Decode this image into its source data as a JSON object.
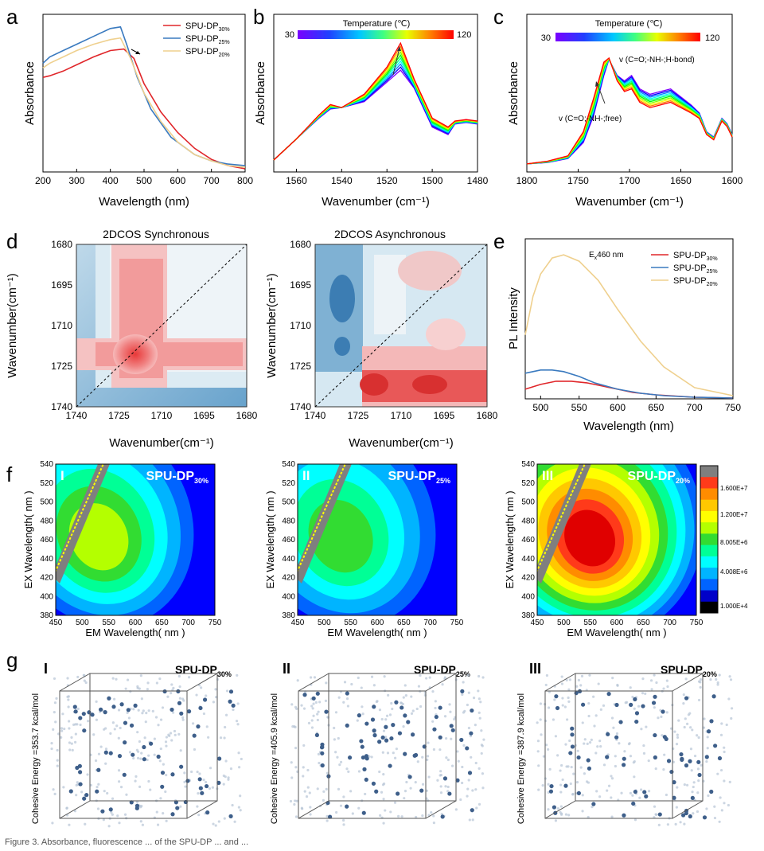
{
  "colors": {
    "red": "#e0262a",
    "blue": "#3a7abf",
    "yellow": "#efd08e"
  },
  "panel_labels": {
    "a": "a",
    "b": "b",
    "c": "c",
    "d": "d",
    "e": "e",
    "f": "f",
    "g": "g"
  },
  "temperature_bar": {
    "title": "Temperature (℃)",
    "min": "30",
    "max": "120"
  },
  "chart_data": [
    {
      "id": "a",
      "type": "line",
      "xlabel": "Wavelength (nm)",
      "ylabel": "Absorbance",
      "xlim": [
        200,
        800
      ],
      "x_ticks": [
        "200",
        "300",
        "400",
        "500",
        "600",
        "700",
        "800"
      ],
      "legend": [
        {
          "base": "SPU-DP",
          "sub": "30%"
        },
        {
          "base": "SPU-DP",
          "sub": "25%"
        },
        {
          "base": "SPU-DP",
          "sub": "20%"
        }
      ],
      "series": [
        {
          "name": "SPU-DP30%",
          "color": "red",
          "x": [
            200,
            220,
            260,
            300,
            350,
            400,
            440,
            470,
            500,
            550,
            600,
            650,
            700,
            750,
            800
          ],
          "y": [
            0.6,
            0.61,
            0.64,
            0.68,
            0.73,
            0.77,
            0.78,
            0.72,
            0.56,
            0.38,
            0.25,
            0.15,
            0.08,
            0.04,
            0.02
          ]
        },
        {
          "name": "SPU-DP25%",
          "color": "blue",
          "x": [
            200,
            220,
            260,
            300,
            350,
            400,
            430,
            450,
            480,
            520,
            580,
            650,
            700,
            750,
            800
          ],
          "y": [
            0.69,
            0.73,
            0.77,
            0.81,
            0.86,
            0.91,
            0.92,
            0.8,
            0.6,
            0.4,
            0.22,
            0.11,
            0.07,
            0.05,
            0.04
          ]
        },
        {
          "name": "SPU-DP20%",
          "color": "yellow",
          "x": [
            200,
            220,
            260,
            300,
            350,
            400,
            430,
            460,
            500,
            550,
            600,
            650,
            700,
            750,
            800
          ],
          "y": [
            0.66,
            0.69,
            0.73,
            0.77,
            0.81,
            0.84,
            0.85,
            0.72,
            0.5,
            0.32,
            0.19,
            0.11,
            0.07,
            0.04,
            0.03
          ]
        }
      ]
    },
    {
      "id": "b",
      "type": "line",
      "xlabel": "Wavenumber (cm⁻¹)",
      "ylabel": "Absorbance",
      "xlim": [
        1570,
        1480
      ],
      "x_ticks": [
        "1560",
        "1540",
        "1520",
        "1500",
        "1480"
      ],
      "x": [
        1570,
        1560,
        1550,
        1545,
        1540,
        1530,
        1520,
        1514,
        1508,
        1500,
        1493,
        1490,
        1485,
        1480
      ],
      "y_low": [
        0.08,
        0.22,
        0.36,
        0.42,
        0.43,
        0.47,
        0.6,
        0.68,
        0.56,
        0.3,
        0.25,
        0.32,
        0.33,
        0.32
      ],
      "y_high": [
        0.08,
        0.22,
        0.38,
        0.45,
        0.43,
        0.52,
        0.7,
        0.86,
        0.62,
        0.36,
        0.3,
        0.34,
        0.35,
        0.34
      ],
      "n_curves": 10
    },
    {
      "id": "c",
      "type": "line",
      "xlabel": "Wavenumber (cm⁻¹)",
      "ylabel": "Absorbance",
      "xlim": [
        1800,
        1600
      ],
      "x_ticks": [
        "1800",
        "1750",
        "1700",
        "1650",
        "1600"
      ],
      "annotations": [
        "v (C=O;-NH-;H-bond)",
        "v (C=O;-NH-;free)"
      ],
      "x": [
        1800,
        1780,
        1760,
        1745,
        1735,
        1725,
        1720,
        1712,
        1705,
        1698,
        1690,
        1680,
        1670,
        1660,
        1650,
        1640,
        1632,
        1625,
        1618,
        1610,
        1605,
        1600
      ],
      "y_cold": [
        0.06,
        0.07,
        0.1,
        0.22,
        0.42,
        0.72,
        0.84,
        0.72,
        0.68,
        0.72,
        0.62,
        0.58,
        0.6,
        0.62,
        0.56,
        0.5,
        0.44,
        0.3,
        0.26,
        0.4,
        0.36,
        0.28
      ],
      "y_hot": [
        0.06,
        0.08,
        0.12,
        0.3,
        0.55,
        0.82,
        0.85,
        0.68,
        0.6,
        0.62,
        0.52,
        0.48,
        0.5,
        0.52,
        0.48,
        0.44,
        0.4,
        0.28,
        0.24,
        0.38,
        0.34,
        0.26
      ],
      "n_curves": 10
    },
    {
      "id": "d1",
      "type": "heatmap",
      "title": "2DCOS Synchronous",
      "xlabel": "Wavenumber(cm⁻¹)",
      "ylabel": "Wavenumber(cm⁻¹)",
      "x_ticks": [
        "1740",
        "1725",
        "1710",
        "1695",
        "1680"
      ],
      "y_ticks": [
        "1680",
        "1695",
        "1710",
        "1725",
        "1740"
      ]
    },
    {
      "id": "d2",
      "type": "heatmap",
      "title": "2DCOS Asynchronous",
      "xlabel": "Wavenumber(cm⁻¹)",
      "ylabel": "Wavenumber(cm⁻¹)",
      "x_ticks": [
        "1740",
        "1725",
        "1710",
        "1695",
        "1680"
      ],
      "y_ticks": [
        "1680",
        "1695",
        "1710",
        "1725",
        "1740"
      ]
    },
    {
      "id": "e",
      "type": "line",
      "xlabel": "Wavelength (nm)",
      "ylabel": "PL Intensity",
      "xlim": [
        480,
        750
      ],
      "x_ticks": [
        "500",
        "550",
        "600",
        "650",
        "700",
        "750"
      ],
      "note_base": "E",
      "note_sub": "x",
      "note_tail": "460 nm",
      "legend": [
        {
          "base": "SPU-DP",
          "sub": "30%"
        },
        {
          "base": "SPU-DP",
          "sub": "25%"
        },
        {
          "base": "SPU-DP",
          "sub": "20%"
        }
      ],
      "series": [
        {
          "name": "SPU-DP30%",
          "color": "red",
          "x": [
            480,
            500,
            520,
            540,
            560,
            580,
            600,
            620,
            650,
            700,
            750
          ],
          "y": [
            0.06,
            0.09,
            0.11,
            0.11,
            0.1,
            0.08,
            0.06,
            0.04,
            0.025,
            0.01,
            0.005
          ]
        },
        {
          "name": "SPU-DP25%",
          "color": "blue",
          "x": [
            480,
            490,
            500,
            515,
            530,
            550,
            570,
            600,
            630,
            660,
            700,
            750
          ],
          "y": [
            0.16,
            0.17,
            0.18,
            0.18,
            0.17,
            0.14,
            0.1,
            0.06,
            0.035,
            0.02,
            0.01,
            0.005
          ]
        },
        {
          "name": "SPU-DP20%",
          "color": "yellow",
          "x": [
            480,
            490,
            500,
            515,
            530,
            550,
            575,
            600,
            630,
            660,
            700,
            750
          ],
          "y": [
            0.4,
            0.64,
            0.78,
            0.88,
            0.9,
            0.86,
            0.74,
            0.56,
            0.36,
            0.2,
            0.07,
            0.02
          ]
        }
      ]
    },
    {
      "id": "f",
      "type": "heatmap",
      "xlabel": "EM Wavelength( nm )",
      "ylabel": "EX Wavelength( nm )",
      "x_ticks": [
        "450",
        "500",
        "550",
        "600",
        "650",
        "700",
        "750"
      ],
      "y_ticks": [
        "380",
        "400",
        "420",
        "440",
        "460",
        "480",
        "500",
        "520",
        "540"
      ],
      "maps": [
        {
          "roman": "I",
          "base": "SPU-DP",
          "sub": "30%",
          "peak_level": 6
        },
        {
          "roman": "II",
          "base": "SPU-DP",
          "sub": "25%",
          "peak_level": 5
        },
        {
          "roman": "III",
          "base": "SPU-DP",
          "sub": "20%",
          "peak_level": 11
        }
      ],
      "colorbar_labels": [
        "1.600E+7",
        "1.200E+7",
        "8.005E+6",
        "4.008E+6",
        "1.000E+4"
      ],
      "colorbar_colors": [
        "#7f7f7f",
        "#ff3a1a",
        "#ff8c00",
        "#ffc800",
        "#ffff00",
        "#b4ff00",
        "#32dc32",
        "#00ff96",
        "#00ffff",
        "#00b4ff",
        "#0064ff",
        "#0000c8",
        "#000000"
      ]
    }
  ],
  "g": {
    "maps": [
      {
        "roman": "I",
        "base": "SPU-DP",
        "sub": "30%",
        "energy": "Cohesive Energy =353.7 kcal/mol"
      },
      {
        "roman": "II",
        "base": "SPU-DP",
        "sub": "25%",
        "energy": "Cohesive Energy =405.9 kcal/mol"
      },
      {
        "roman": "III",
        "base": "SPU-DP",
        "sub": "20%",
        "energy": "Cohesive Energy =387.9 kcal/mol"
      }
    ]
  },
  "caption": "Figure 3. Absorbance, fluorescence ... of the SPU-DP ... and ..."
}
